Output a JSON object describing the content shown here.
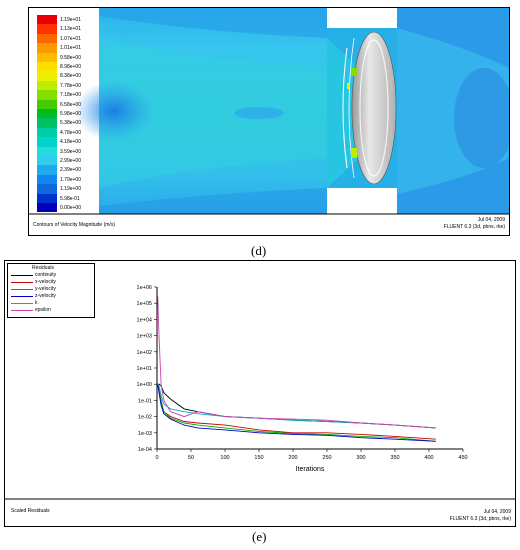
{
  "panel_d": {
    "colorbar_labels": [
      "1.19e+01",
      "1.13e+01",
      "1.07e+01",
      "1.01e+01",
      "9.58e+00",
      "8.98e+00",
      "8.38e+00",
      "7.78e+00",
      "7.18e+00",
      "6.58e+00",
      "5.98e+00",
      "5.38e+00",
      "4.78e+00",
      "4.18e+00",
      "3.59e+00",
      "2.99e+00",
      "2.39e+00",
      "1.79e+00",
      "1.19e+00",
      "5.98e-01",
      "0.00e+00"
    ],
    "colorbar_colors": [
      "#e60000",
      "#ff3300",
      "#ff6600",
      "#ff9900",
      "#ffbb00",
      "#ffdd00",
      "#eeee00",
      "#bbee00",
      "#88dd00",
      "#44cc00",
      "#00bb22",
      "#00c066",
      "#00ccaa",
      "#00d4cc",
      "#22dddd",
      "#33ccee",
      "#22aaee",
      "#1188ee",
      "#1166dd",
      "#0033cc",
      "#0000bb"
    ],
    "caption": "Contours of Velocity Magnitude (m/s)",
    "date": "Jul 04, 2009",
    "solver": "FLUENT 6.3 (3d, pbns, rke)",
    "label": "(d)"
  },
  "panel_e": {
    "legend_title": "Residuals",
    "caption": "Scaled Residuals",
    "date": "Jul 04, 2009",
    "solver": "FLUENT 6.3 (3d, pbns, rke)",
    "label": "(e)"
  },
  "chart_data": {
    "type": "line",
    "title": "",
    "xlabel": "Iterations",
    "ylabel": "",
    "xlim": [
      0,
      450
    ],
    "ylim": [
      -4,
      6
    ],
    "y_scale": "log",
    "x_ticks": [
      "0",
      "50",
      "100",
      "150",
      "200",
      "250",
      "300",
      "350",
      "400",
      "450"
    ],
    "y_ticks": [
      "1e-04",
      "1e-03",
      "1e-02",
      "1e-01",
      "1e+00",
      "1e+01",
      "1e+02",
      "1e+03",
      "1e+04",
      "1e+05",
      "1e+06"
    ],
    "legend_position": "top-left",
    "series": [
      {
        "name": "continuity",
        "color": "#000000",
        "x": [
          1,
          3,
          6,
          10,
          20,
          40,
          60,
          100,
          150,
          200,
          250,
          300,
          350,
          410
        ],
        "y": [
          1,
          1,
          0.8,
          0.3,
          0.12,
          0.03,
          0.02,
          0.01,
          0.008,
          0.006,
          0.005,
          0.004,
          0.003,
          0.002
        ]
      },
      {
        "name": "x-velocity",
        "color": "#cc0000",
        "x": [
          1,
          3,
          6,
          10,
          20,
          40,
          60,
          100,
          150,
          200,
          250,
          300,
          350,
          410
        ],
        "y": [
          1,
          0.5,
          0.1,
          0.02,
          0.01,
          0.005,
          0.004,
          0.003,
          0.0015,
          0.001,
          0.001,
          0.0008,
          0.0006,
          0.0004
        ]
      },
      {
        "name": "y-velocity",
        "color": "#00aa00",
        "x": [
          1,
          3,
          6,
          10,
          20,
          40,
          60,
          100,
          150,
          200,
          250,
          300,
          350,
          410
        ],
        "y": [
          1,
          0.4,
          0.08,
          0.02,
          0.008,
          0.004,
          0.003,
          0.002,
          0.0012,
          0.0009,
          0.0008,
          0.0006,
          0.0005,
          0.0003
        ]
      },
      {
        "name": "z-velocity",
        "color": "#0000cc",
        "x": [
          1,
          3,
          6,
          10,
          20,
          40,
          60,
          100,
          150,
          200,
          250,
          300,
          350,
          410
        ],
        "y": [
          1,
          0.3,
          0.05,
          0.015,
          0.007,
          0.003,
          0.002,
          0.0015,
          0.001,
          0.0008,
          0.0007,
          0.0005,
          0.0004,
          0.0003
        ]
      },
      {
        "name": "k",
        "color": "#00aacc",
        "x": [
          1,
          3,
          6,
          10,
          20,
          40,
          60,
          100,
          150,
          200,
          250,
          300,
          350,
          410
        ],
        "y": [
          1,
          0.8,
          0.2,
          0.06,
          0.03,
          0.02,
          0.015,
          0.01,
          0.008,
          0.006,
          0.005,
          0.004,
          0.003,
          0.002
        ]
      },
      {
        "name": "epsilon",
        "color": "#cc44aa",
        "x": [
          1,
          3,
          6,
          10,
          20,
          40,
          60,
          100,
          150,
          200,
          250,
          300,
          350,
          410
        ],
        "y": [
          300000,
          1000,
          1,
          0.1,
          0.02,
          0.01,
          0.02,
          0.01,
          0.008,
          0.007,
          0.006,
          0.004,
          0.003,
          0.002
        ]
      }
    ]
  }
}
